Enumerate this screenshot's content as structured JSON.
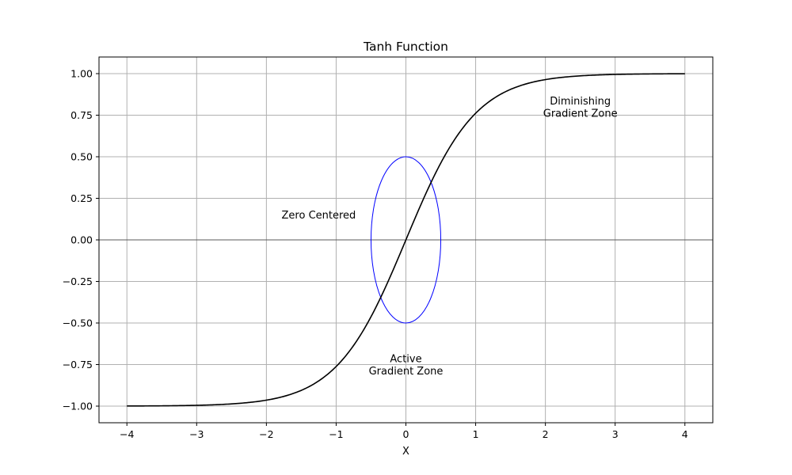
{
  "chart_data": {
    "type": "line",
    "title": "Tanh Function",
    "xlabel": "X",
    "ylabel": "",
    "xlim": [
      -4.4,
      4.4
    ],
    "ylim": [
      -1.1,
      1.1
    ],
    "grid": true,
    "x_ticks": [
      -4,
      -3,
      -2,
      -1,
      0,
      1,
      2,
      3,
      4
    ],
    "x_tick_labels": [
      "−4",
      "−3",
      "−2",
      "−1",
      "0",
      "1",
      "2",
      "3",
      "4"
    ],
    "y_ticks": [
      1.0,
      0.75,
      0.5,
      0.25,
      0.0,
      -0.25,
      -0.5,
      -0.75,
      -1.0
    ],
    "y_tick_labels": [
      "1.00",
      "0.75",
      "0.50",
      "0.25",
      "0.00",
      "−0.25",
      "−0.50",
      "−0.75",
      "−1.00"
    ],
    "series": [
      {
        "function": "tanh",
        "x_range": [
          -4,
          4
        ],
        "color": "#000000",
        "points": [
          {
            "x": -4,
            "y": -0.999
          },
          {
            "x": -3,
            "y": -0.995
          },
          {
            "x": -2,
            "y": -0.964
          },
          {
            "x": -1,
            "y": -0.762
          },
          {
            "x": 0,
            "y": 0.0
          },
          {
            "x": 1,
            "y": 0.762
          },
          {
            "x": 2,
            "y": 0.964
          },
          {
            "x": 3,
            "y": 0.995
          },
          {
            "x": 4,
            "y": 0.999
          }
        ]
      }
    ],
    "reference_lines": [
      {
        "orientation": "horizontal",
        "y": 0,
        "color": "#000000"
      }
    ],
    "ellipse": {
      "center_x": 0,
      "center_y": 0,
      "width": 1.0,
      "height": 1.0,
      "color": "#0000ff"
    },
    "annotations": [
      {
        "lines": [
          "Zero Centered"
        ],
        "x": -1.25,
        "y": 0.15
      },
      {
        "lines": [
          "Active",
          "Gradient Zone"
        ],
        "x": 0,
        "y": -0.75
      },
      {
        "lines": [
          "Diminishing",
          "Gradient Zone"
        ],
        "x": 2.5,
        "y": 0.8
      }
    ]
  }
}
